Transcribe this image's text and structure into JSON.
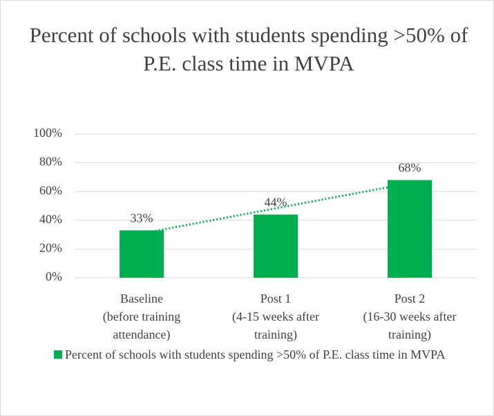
{
  "chart_data": {
    "type": "bar",
    "title": "Percent of schools with students spending >50% of P.E. class time in MVPA",
    "categories": [
      [
        "Baseline",
        "(before training",
        "attendance)"
      ],
      [
        "Post 1",
        "(4-15 weeks after",
        "training)"
      ],
      [
        "Post 2",
        "(16-30 weeks after",
        "training)"
      ]
    ],
    "series": [
      {
        "name": "Percent of schools with students spending >50% of P.E. class time in MVPA",
        "color": "#00b050",
        "values": [
          33,
          44,
          68
        ],
        "value_labels": [
          "33%",
          "44%",
          "68%"
        ]
      }
    ],
    "trendline": "linear",
    "ylim": [
      0,
      100
    ],
    "yticks": [
      {
        "value": 0,
        "label": "0%"
      },
      {
        "value": 20,
        "label": "20%"
      },
      {
        "value": 40,
        "label": "40%"
      },
      {
        "value": 60,
        "label": "60%"
      },
      {
        "value": 80,
        "label": "80%"
      },
      {
        "value": 100,
        "label": "100%"
      }
    ],
    "grid": true,
    "legend": "bottom"
  }
}
